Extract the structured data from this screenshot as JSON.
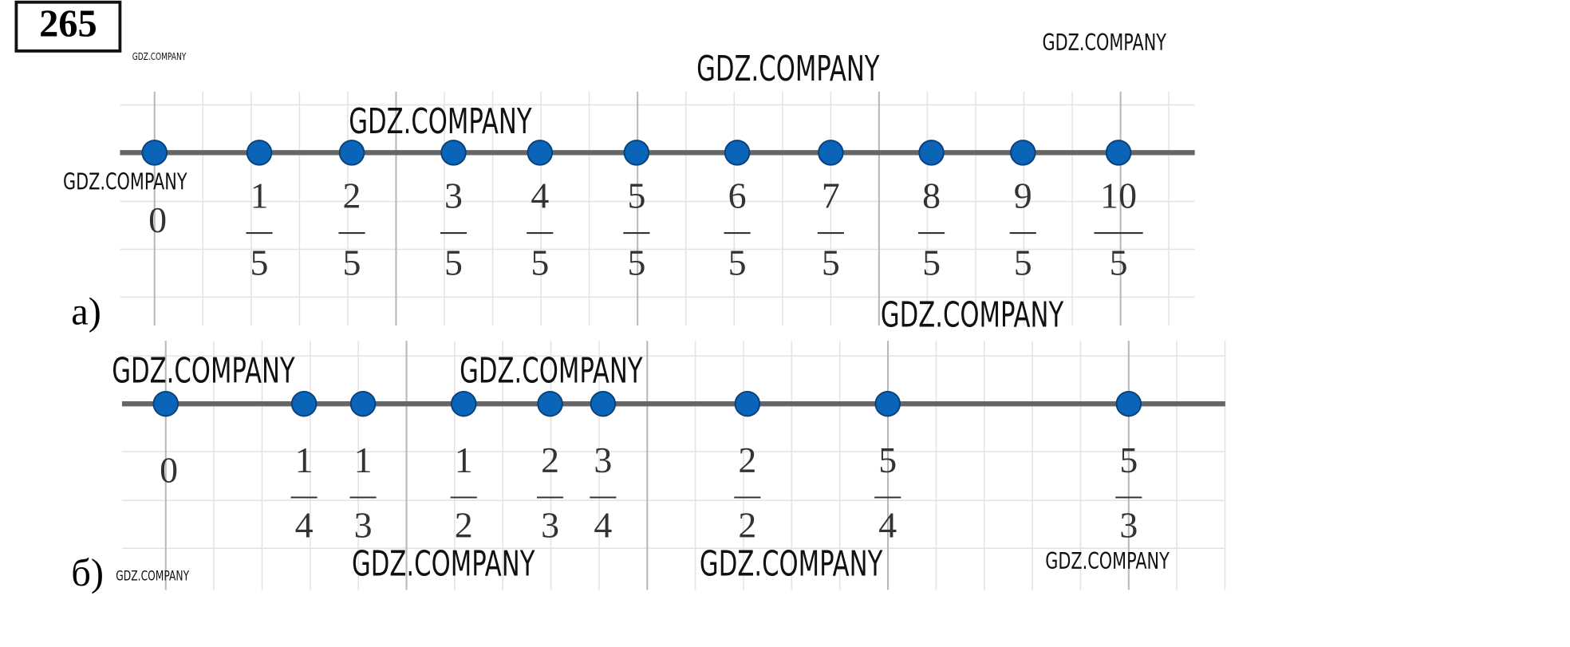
{
  "problem": "265",
  "watermarks": [
    "GDZ.COMPANY",
    "GDZ.COMPANY",
    "GDZ.COMPANY",
    "GDZ.COMPANY",
    "GDZ.COMPANY",
    "GDZ.COMPANY",
    "GDZ.COMPANY",
    "GDZ.COMPANY",
    "GDZ.COMPANY",
    "GDZ.COMPANY",
    "GDZ.COMPANY",
    "GDZ.COMPANY"
  ],
  "parts": [
    {
      "label": "а)",
      "points": [
        {
          "label": "0"
        },
        {
          "numerator": "1",
          "denominator": "5"
        },
        {
          "numerator": "2",
          "denominator": "5"
        },
        {
          "numerator": "3",
          "denominator": "5"
        },
        {
          "numerator": "4",
          "denominator": "5"
        },
        {
          "numerator": "5",
          "denominator": "5"
        },
        {
          "numerator": "6",
          "denominator": "5"
        },
        {
          "numerator": "7",
          "denominator": "5"
        },
        {
          "numerator": "8",
          "denominator": "5"
        },
        {
          "numerator": "9",
          "denominator": "5"
        },
        {
          "numerator": "10",
          "denominator": "5"
        }
      ]
    },
    {
      "label": "б)",
      "points": [
        {
          "label": "0"
        },
        {
          "numerator": "1",
          "denominator": "4"
        },
        {
          "numerator": "1",
          "denominator": "3"
        },
        {
          "numerator": "1",
          "denominator": "2"
        },
        {
          "numerator": "2",
          "denominator": "3"
        },
        {
          "numerator": "3",
          "denominator": "4"
        },
        {
          "numerator": "2",
          "denominator": "2"
        },
        {
          "numerator": "5",
          "denominator": "4"
        },
        {
          "numerator": "5",
          "denominator": "3"
        }
      ]
    }
  ]
}
